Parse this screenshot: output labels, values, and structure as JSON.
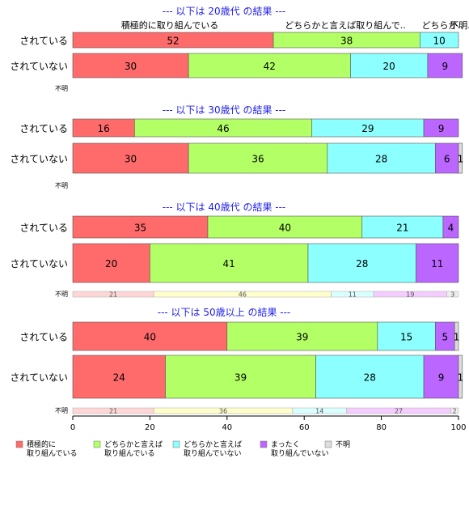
{
  "chart_data": {
    "type": "bar",
    "orientation": "horizontal",
    "stacked": true,
    "xlim": [
      0,
      100
    ],
    "x_ticks": [
      "0",
      "20",
      "40",
      "60",
      "80",
      "100"
    ],
    "categories_legend": [
      "積極的に\n取り組んでいる",
      "どちらかと言えば\n取り組んでいる",
      "どちらかと言えば\n取り組んでいない",
      "まったく\n取り組んでいない",
      "不明"
    ],
    "colors": [
      "#ff6b6b",
      "#b3ff66",
      "#8cffff",
      "#bb66ff",
      "#dddddd"
    ],
    "light_colors": [
      "#ffd6d6",
      "#ffffcc",
      "#d9ffff",
      "#f5ccff",
      "#eeeeee"
    ],
    "top_labels": [
      "積極的に取り組んでいる",
      "どちらかと言えば取り組んで..",
      "どちらか..",
      "不明."
    ],
    "panels": [
      {
        "title": "--- 以下は 20歳代 の結果 ---",
        "rows": [
          {
            "label": "されている",
            "values": [
              52,
              38,
              10,
              0,
              0
            ]
          },
          {
            "label": "されていない",
            "values": [
              30,
              42,
              20,
              9,
              0
            ]
          }
        ],
        "unknown": {
          "label": "不明",
          "values": []
        }
      },
      {
        "title": "--- 以下は 30歳代 の結果 ---",
        "rows": [
          {
            "label": "されている",
            "values": [
              16,
              46,
              29,
              9,
              0
            ]
          },
          {
            "label": "されていない",
            "values": [
              30,
              36,
              28,
              6,
              1
            ]
          }
        ],
        "unknown": {
          "label": "不明",
          "values": []
        }
      },
      {
        "title": "--- 以下は 40歳代 の結果 ---",
        "rows": [
          {
            "label": "されている",
            "values": [
              35,
              40,
              21,
              4,
              0
            ]
          },
          {
            "label": "されていない",
            "values": [
              20,
              41,
              28,
              11,
              0
            ]
          }
        ],
        "unknown": {
          "label": "不明",
          "values": [
            21,
            46,
            11,
            19,
            3
          ]
        }
      },
      {
        "title": "--- 以下は 50歳以上 の結果 ---",
        "rows": [
          {
            "label": "されている",
            "values": [
              40,
              39,
              15,
              5,
              1
            ]
          },
          {
            "label": "されていない",
            "values": [
              24,
              39,
              28,
              9,
              1
            ]
          }
        ],
        "unknown": {
          "label": "不明",
          "values": [
            21,
            36,
            14,
            27,
            2
          ]
        }
      }
    ]
  }
}
